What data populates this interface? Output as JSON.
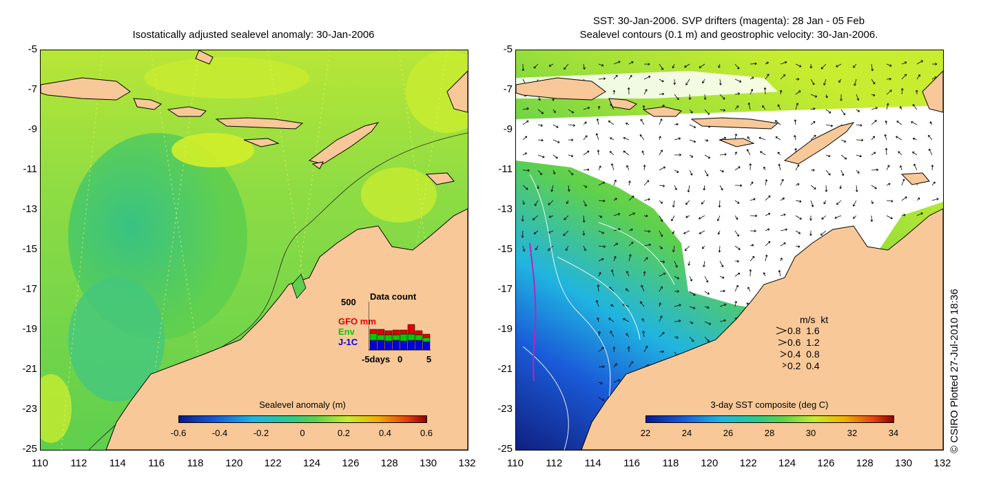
{
  "left_panel": {
    "title": "Isostatically adjusted sealevel anomaly: 30-Jan-2006",
    "colorbar": {
      "label": "Sealevel anomaly (m)",
      "ticks": [
        "-0.6",
        "-0.4",
        "-0.2",
        "0",
        "0.2",
        "0.4",
        "0.6"
      ]
    },
    "data_count": {
      "title": "Data count",
      "ymax_label": "500",
      "series": [
        "GFO mm",
        "Env",
        "J-1C"
      ],
      "series_colors": [
        "#e00000",
        "#00cc00",
        "#0000dd"
      ],
      "xticks": [
        "-5days",
        "0",
        "5"
      ]
    }
  },
  "right_panel": {
    "title_line1": "SST: 30-Jan-2006. SVP drifters (magenta): 28 Jan - 05 Feb",
    "title_line2": "Sealevel contours (0.1 m) and geostrophic velocity: 30-Jan-2006.",
    "colorbar": {
      "label": "3-day SST composite (deg C)",
      "ticks": [
        "22",
        "24",
        "26",
        "28",
        "30",
        "32",
        "34"
      ]
    },
    "velocity_scale": {
      "header": "m/s  kt",
      "rows": [
        "0.8  1.6",
        "0.6  1.2",
        "0.4  0.8",
        "0.2  0.4"
      ]
    }
  },
  "axes": {
    "y_ticks": [
      "-5",
      "-7",
      "-9",
      "-11",
      "-13",
      "-15",
      "-17",
      "-19",
      "-21",
      "-23",
      "-25"
    ],
    "x_ticks": [
      "110",
      "112",
      "114",
      "116",
      "118",
      "120",
      "122",
      "124",
      "126",
      "128",
      "130",
      "132"
    ]
  },
  "credit": "© CSIRO Plotted 27-Jul-2010 18:36",
  "colors": {
    "land": "#f8c898",
    "ocean_green": "#5ecf4e",
    "ocean_teal": "#3bbf8a",
    "ocean_yellow": "#c8ec30",
    "cloud": "#ffffff"
  }
}
